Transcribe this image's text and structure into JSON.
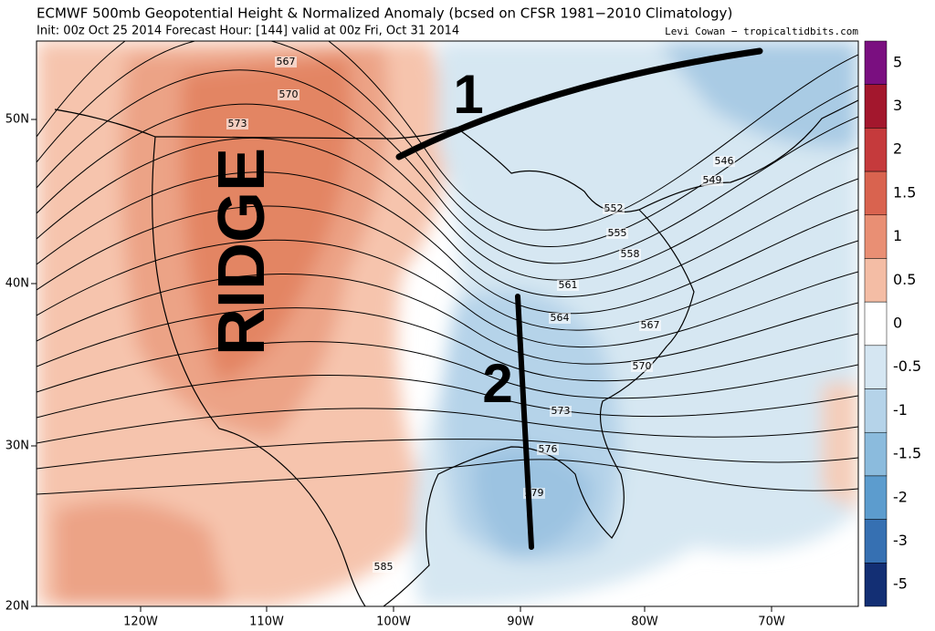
{
  "header": {
    "title": "ECMWF 500mb Geopotential Height & Normalized Anomaly (bcsed on CFSR 1981−2010 Climatology)",
    "subtitle": "Init: 00z Oct 25 2014 Forecast Hour: [144] valid at 00z Fri, Oct 31 2014",
    "credit": "Levi Cowan − tropicaltidbits.com"
  },
  "map": {
    "lat_labels": [
      "50N",
      "40N",
      "30N",
      "20N"
    ],
    "lon_labels": [
      "120W",
      "110W",
      "100W",
      "90W",
      "80W",
      "70W"
    ],
    "contour_labels": [
      567,
      570,
      573,
      546,
      549,
      552,
      555,
      558,
      561,
      564,
      567,
      570,
      573,
      576,
      579,
      585
    ],
    "annotations": [
      "RIDGE",
      "1",
      "2"
    ]
  },
  "colorbar": {
    "ticks": [
      5,
      3,
      2,
      1.5,
      1,
      0.5,
      0,
      -0.5,
      -1,
      -1.5,
      -2,
      -3,
      -5
    ],
    "colors": [
      "#7a0f80",
      "#a3172d",
      "#c53a3c",
      "#d9634f",
      "#e98f74",
      "#f4bda5",
      "#ffffff",
      "#d5e6f2",
      "#b5d3e9",
      "#8bbbdd",
      "#5c9cce",
      "#3670b2",
      "#132f74"
    ]
  }
}
